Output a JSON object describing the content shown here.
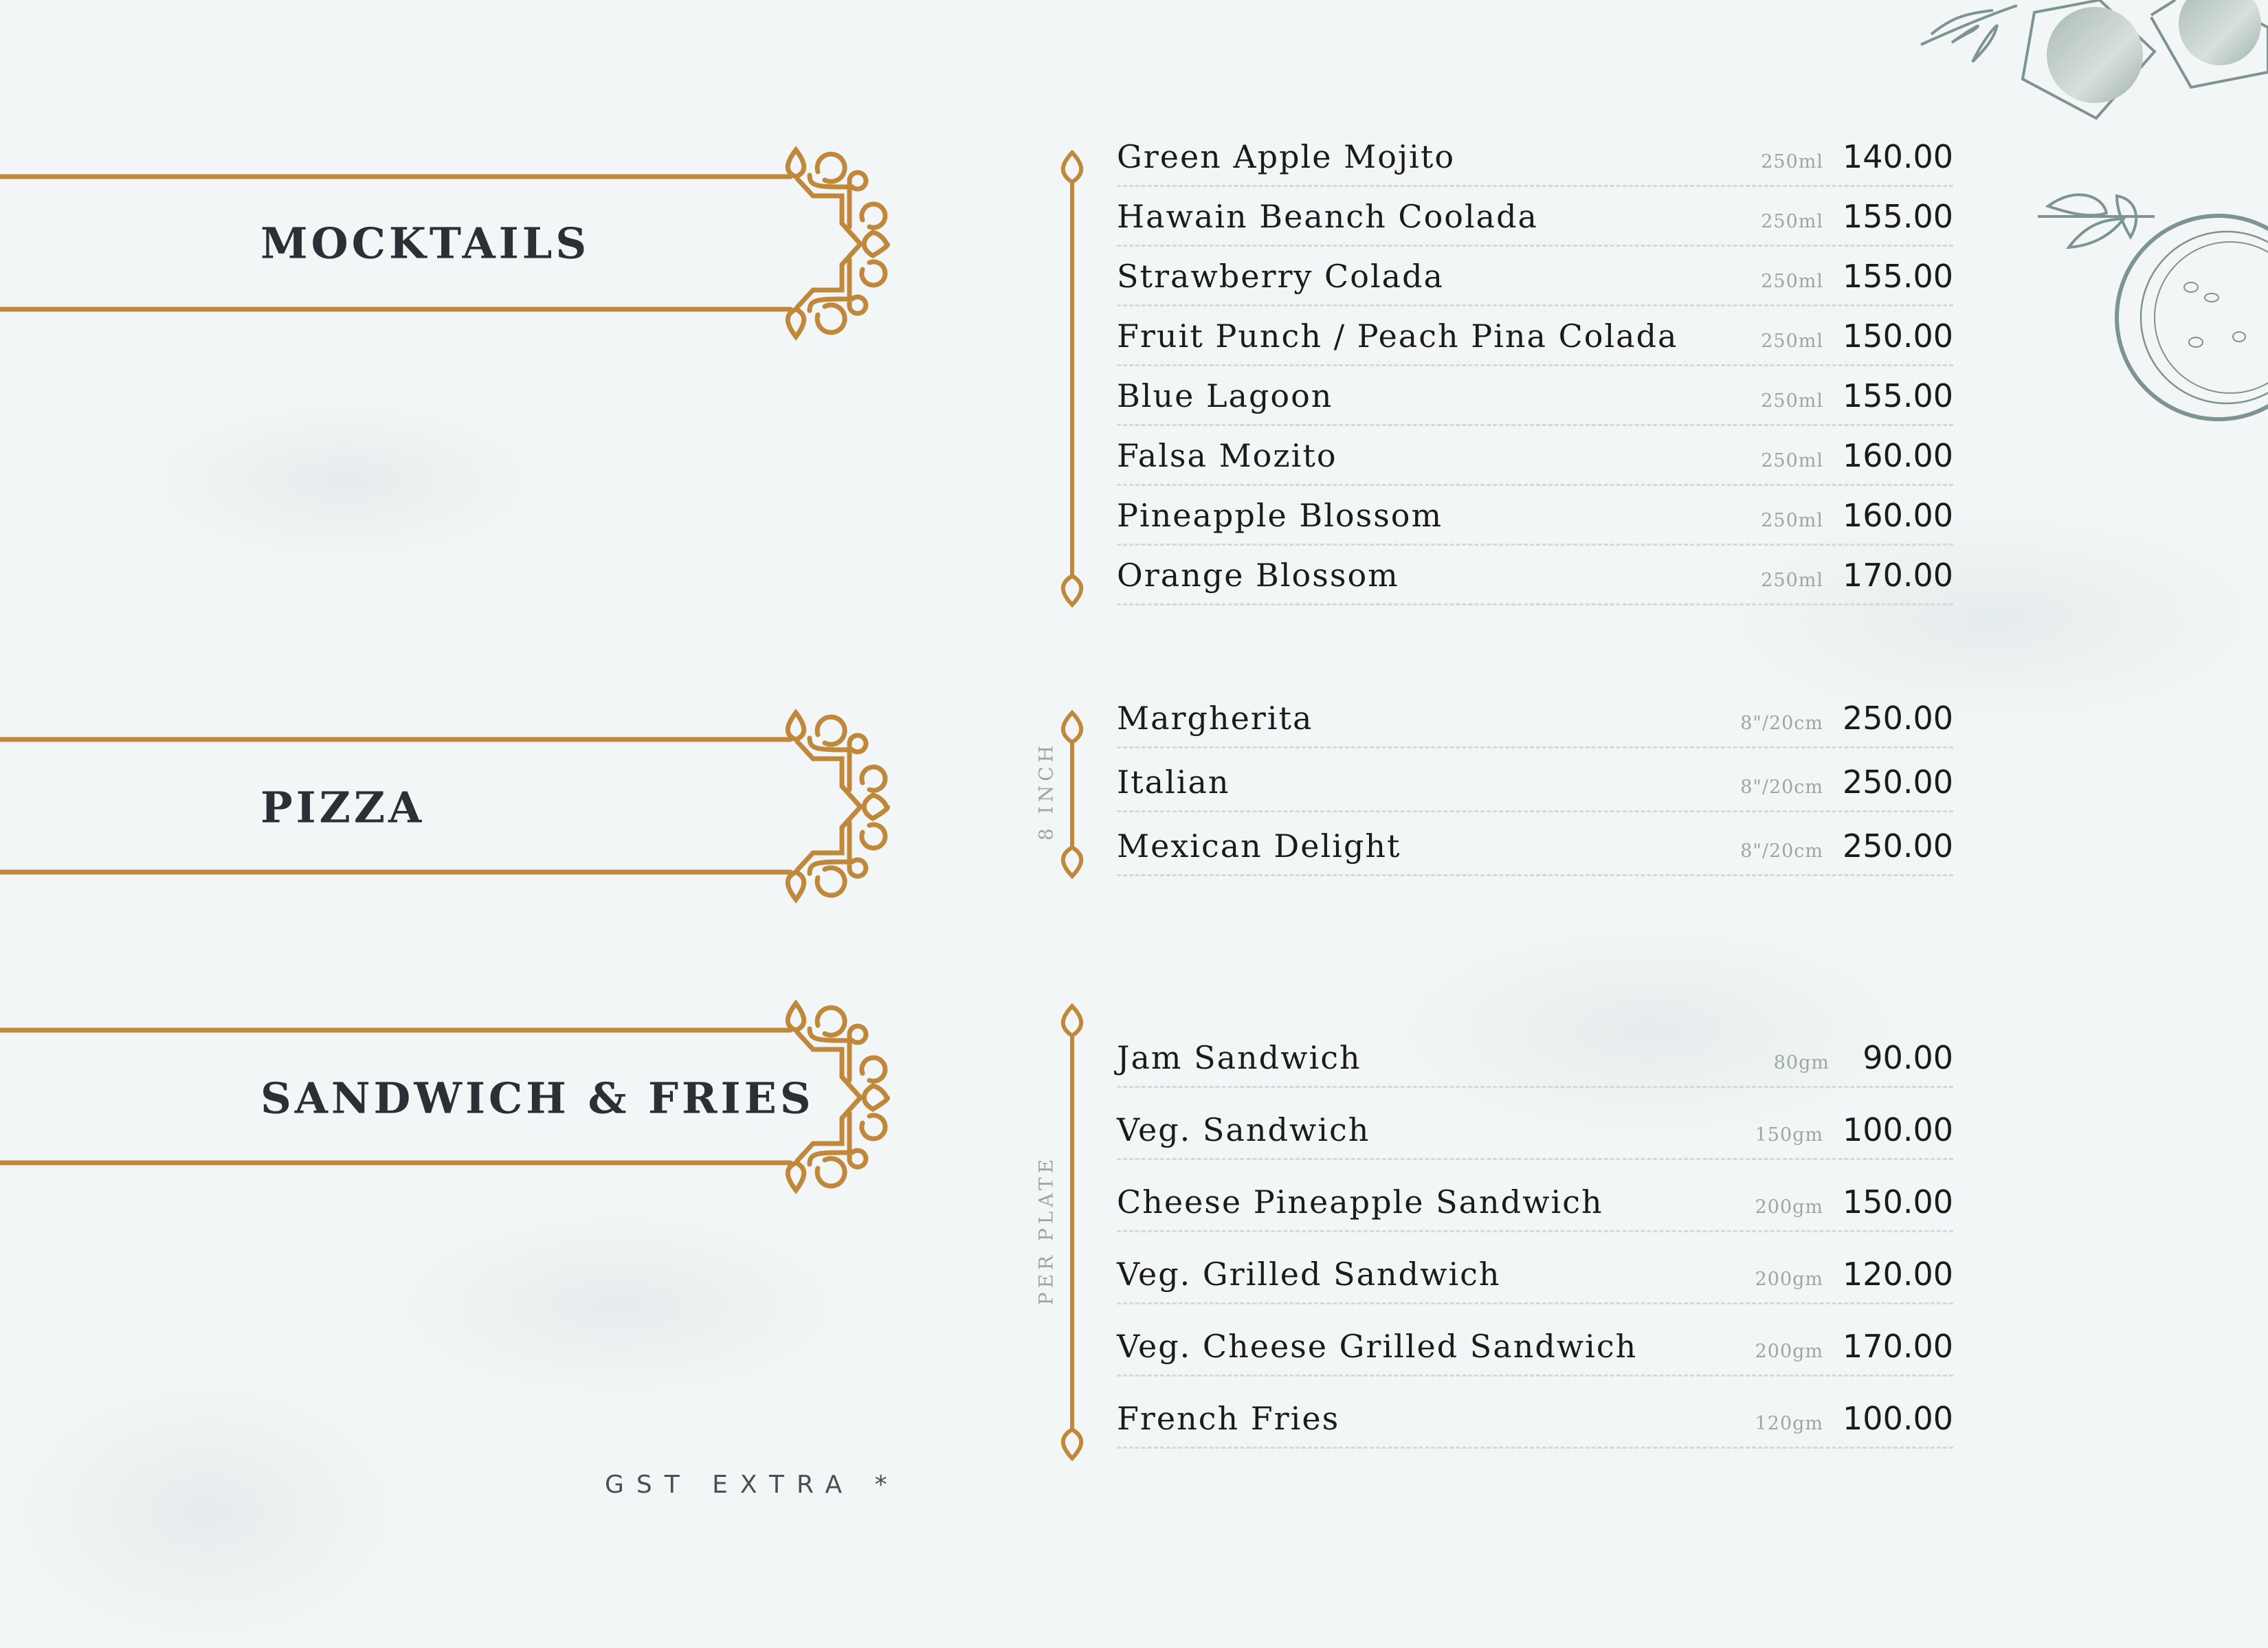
{
  "colors": {
    "accent": "#c0883a",
    "text": "#1b1b1b",
    "muted": "#9aa7a5",
    "decor": "#7d9490"
  },
  "sections": [
    {
      "title": "MOCKTAILS",
      "side_label": "",
      "items": [
        {
          "name": "Green Apple Mojito",
          "unit": "250ml",
          "price": "140.00"
        },
        {
          "name": "Hawain Beanch Coolada",
          "unit": "250ml",
          "price": "155.00"
        },
        {
          "name": "Strawberry Colada",
          "unit": "250ml",
          "price": "155.00"
        },
        {
          "name": "Fruit Punch / Peach Pina Colada",
          "unit": "250ml",
          "price": "150.00"
        },
        {
          "name": "Blue Lagoon",
          "unit": "250ml",
          "price": "155.00"
        },
        {
          "name": "Falsa Mozito",
          "unit": "250ml",
          "price": "160.00"
        },
        {
          "name": "Pineapple Blossom",
          "unit": "250ml",
          "price": "160.00"
        },
        {
          "name": "Orange Blossom",
          "unit": "250ml",
          "price": "170.00"
        }
      ]
    },
    {
      "title": "PIZZA",
      "side_label": "8 INCH",
      "items": [
        {
          "name": "Margherita",
          "unit": "8\"/20cm",
          "price": "250.00"
        },
        {
          "name": "Italian",
          "unit": "8\"/20cm",
          "price": "250.00"
        },
        {
          "name": "Mexican Delight",
          "unit": "8\"/20cm",
          "price": "250.00"
        }
      ]
    },
    {
      "title": "SANDWICH & FRIES",
      "side_label": "PER PLATE",
      "items": [
        {
          "name": "Jam Sandwich",
          "unit": "80gm",
          "price": "90.00"
        },
        {
          "name": "Veg. Sandwich",
          "unit": "150gm",
          "price": "100.00"
        },
        {
          "name": "Cheese Pineapple Sandwich",
          "unit": "200gm",
          "price": "150.00"
        },
        {
          "name": "Veg. Grilled Sandwich",
          "unit": "200gm",
          "price": "120.00"
        },
        {
          "name": "Veg. Cheese Grilled Sandwich",
          "unit": "200gm",
          "price": "170.00"
        },
        {
          "name": "French Fries",
          "unit": "120gm",
          "price": "100.00"
        }
      ]
    }
  ],
  "footer": {
    "note": "GST EXTRA *"
  }
}
